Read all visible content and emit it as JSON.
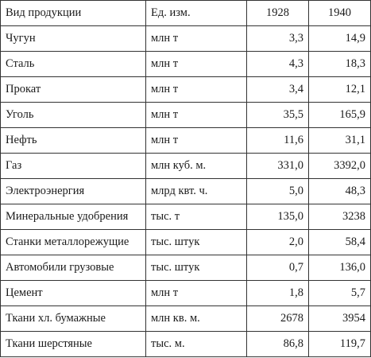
{
  "table": {
    "header": {
      "product": "Вид продукции",
      "unit": "Ед. изм.",
      "year1": "1928",
      "year2": "1940"
    },
    "rows": [
      {
        "product": "Чугун",
        "unit": "млн т",
        "v1928": "3,3",
        "v1940": "14,9"
      },
      {
        "product": "Сталь",
        "unit": "млн т",
        "v1928": "4,3",
        "v1940": "18,3"
      },
      {
        "product": "Прокат",
        "unit": "млн т",
        "v1928": "3,4",
        "v1940": "12,1"
      },
      {
        "product": "Уголь",
        "unit": "млн т",
        "v1928": "35,5",
        "v1940": "165,9"
      },
      {
        "product": "Нефть",
        "unit": "млн т",
        "v1928": "11,6",
        "v1940": "31,1"
      },
      {
        "product": "Газ",
        "unit": "млн куб. м.",
        "v1928": "331,0",
        "v1940": "3392,0"
      },
      {
        "product": "Электроэнергия",
        "unit": "млрд квт. ч.",
        "v1928": "5,0",
        "v1940": "48,3"
      },
      {
        "product": "Минеральные удобрения",
        "unit": "тыс. т",
        "v1928": "135,0",
        "v1940": "3238"
      },
      {
        "product": "Станки металлорежущие",
        "unit": "тыс. штук",
        "v1928": "2,0",
        "v1940": "58,4"
      },
      {
        "product": "Автомобили грузовые",
        "unit": "тыс. штук",
        "v1928": "0,7",
        "v1940": "136,0"
      },
      {
        "product": "Цемент",
        "unit": "млн т",
        "v1928": "1,8",
        "v1940": "5,7"
      },
      {
        "product": "Ткани хл. бумажные",
        "unit": "млн кв. м.",
        "v1928": "2678",
        "v1940": "3954"
      },
      {
        "product": "Ткани шерстяные",
        "unit": "тыс. м.",
        "v1928": "86,8",
        "v1940": "119,7"
      }
    ]
  }
}
